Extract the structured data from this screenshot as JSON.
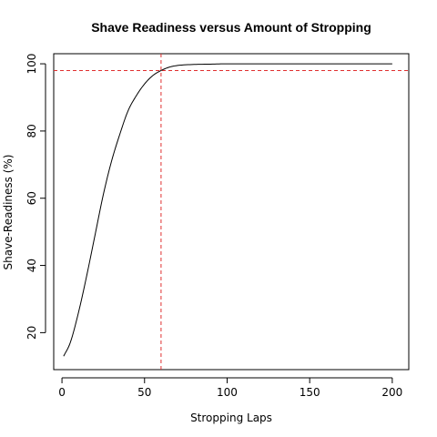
{
  "chart_data": {
    "type": "line",
    "title": "Shave Readiness versus Amount of Stropping",
    "xlabel": "Stropping Laps",
    "ylabel": "Shave-Readiness (%)",
    "xlim": [
      -5,
      210
    ],
    "ylim": [
      9,
      103
    ],
    "xticks": [
      0,
      50,
      100,
      150,
      200
    ],
    "yticks": [
      20,
      40,
      60,
      80,
      100
    ],
    "grid": false,
    "legend": "none",
    "series": [
      {
        "x": [
          1,
          5,
          10,
          15,
          20,
          25,
          30,
          35,
          40,
          45,
          50,
          55,
          60,
          65,
          70,
          80,
          90,
          100,
          120,
          150,
          200
        ],
        "y": [
          13,
          17,
          26,
          37,
          49,
          61,
          71,
          79,
          86,
          90.5,
          94,
          96.5,
          98,
          99,
          99.5,
          99.8,
          99.9,
          100,
          100,
          100,
          100
        ],
        "color": "#000000"
      }
    ],
    "reference_lines": [
      {
        "orientation": "horizontal",
        "value": 98,
        "color": "#e03030",
        "style": "dashed"
      },
      {
        "orientation": "vertical",
        "value": 60,
        "color": "#e03030",
        "style": "dashed"
      }
    ]
  }
}
